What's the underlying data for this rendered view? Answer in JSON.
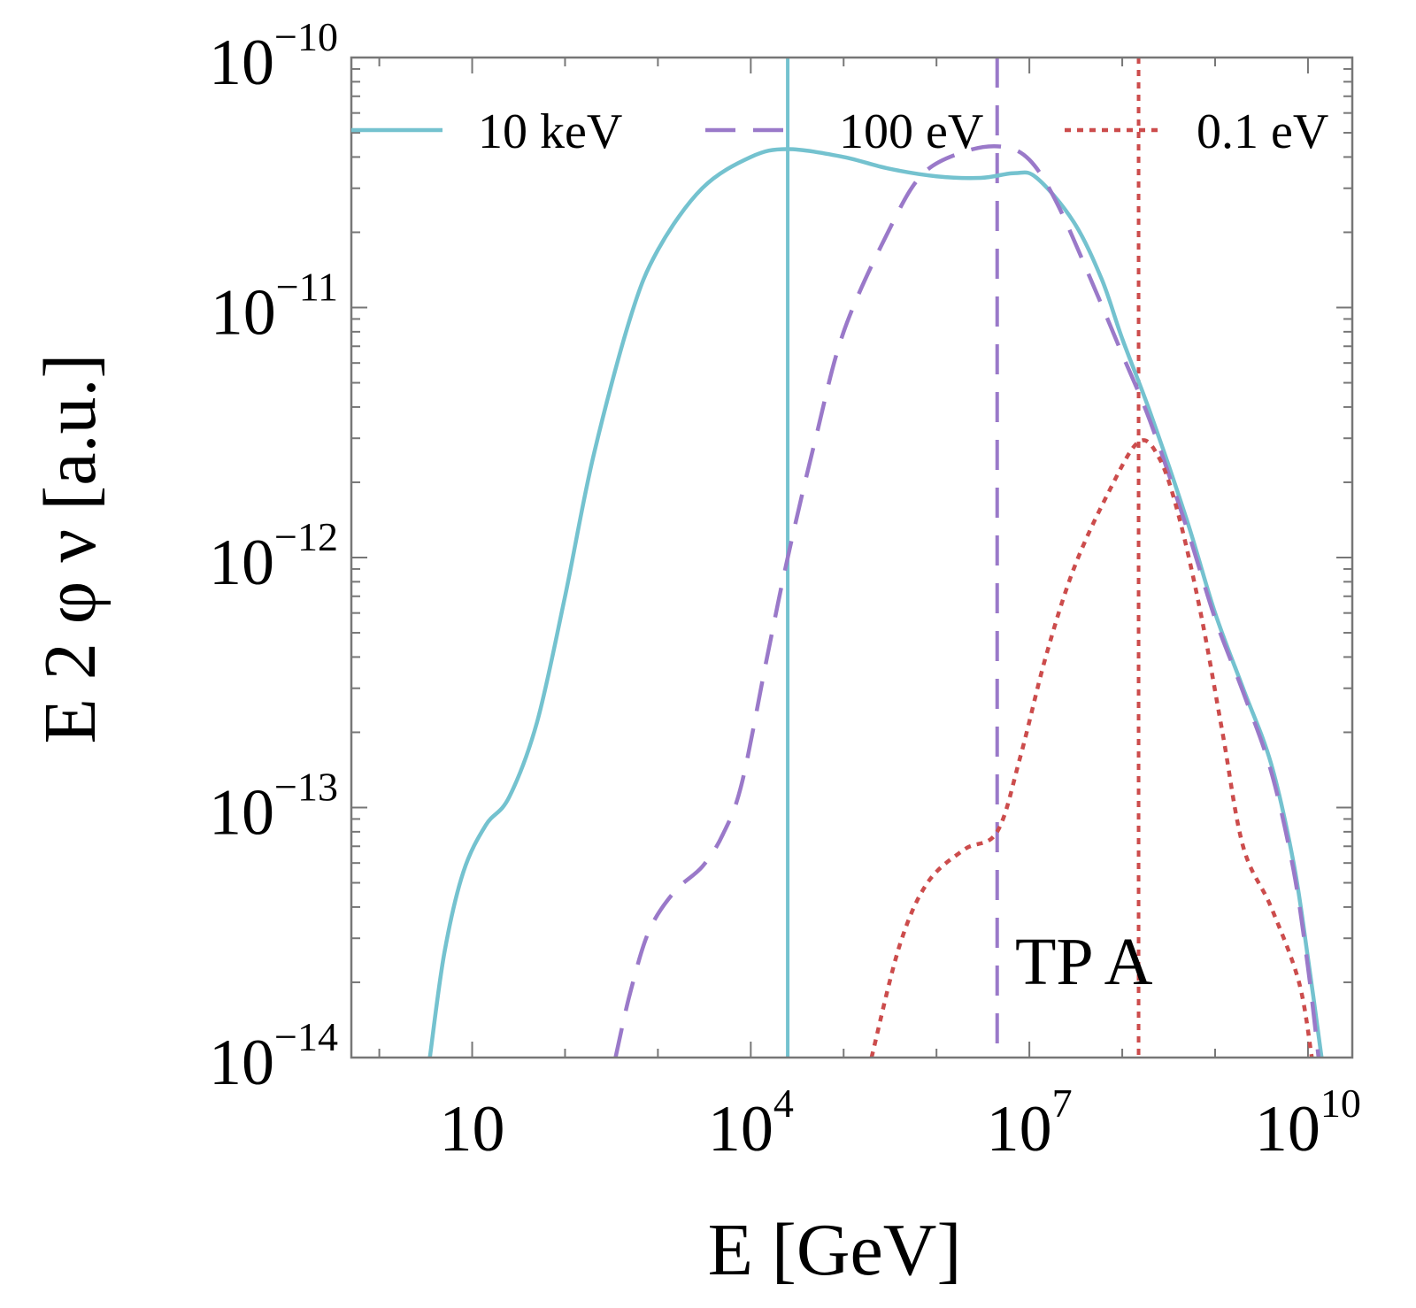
{
  "chart_data": {
    "type": "line",
    "xlabel": "E [GeV]",
    "ylabel": "E 2 φ ν [a.u.]",
    "x_scale": "log",
    "y_scale": "log",
    "xlim": [
      0.5,
      30000000000
    ],
    "ylim": [
      1e-14,
      1e-10
    ],
    "x_ticks": [
      {
        "value": 10,
        "base": "10",
        "exp": ""
      },
      {
        "value": 10000,
        "base": "10",
        "exp": "4"
      },
      {
        "value": 10000000,
        "base": "10",
        "exp": "7"
      },
      {
        "value": 10000000000,
        "base": "10",
        "exp": "10"
      }
    ],
    "y_ticks": [
      {
        "value": 1e-10,
        "base": "10",
        "exp": "−10"
      },
      {
        "value": 1e-11,
        "base": "10",
        "exp": "−11"
      },
      {
        "value": 1e-12,
        "base": "10",
        "exp": "−12"
      },
      {
        "value": 1e-13,
        "base": "10",
        "exp": "−13"
      },
      {
        "value": 1e-14,
        "base": "10",
        "exp": "−14"
      }
    ],
    "annotation": "TP A",
    "legend_position": "top",
    "series": [
      {
        "name": "10 keV",
        "color": "#74c2cf",
        "dash": "solid",
        "vline_x": 25000,
        "points": [
          [
            3.5,
            1e-14
          ],
          [
            5,
            2.6e-14
          ],
          [
            8,
            5.5e-14
          ],
          [
            14,
            8.5e-14
          ],
          [
            25,
            1.1e-13
          ],
          [
            50,
            2.2e-13
          ],
          [
            100,
            7e-13
          ],
          [
            200,
            2.5e-12
          ],
          [
            500,
            9e-12
          ],
          [
            1000,
            1.7e-11
          ],
          [
            3000,
            3e-11
          ],
          [
            10000,
            4e-11
          ],
          [
            25000,
            4.3e-11
          ],
          [
            100000,
            4e-11
          ],
          [
            300000,
            3.6e-11
          ],
          [
            1000000,
            3.35e-11
          ],
          [
            3000000,
            3.3e-11
          ],
          [
            7000000,
            3.45e-11
          ],
          [
            12000000,
            3.3e-11
          ],
          [
            30000000,
            2.2e-11
          ],
          [
            60000000,
            1.3e-11
          ],
          [
            100000000,
            7.5e-12
          ],
          [
            200000000,
            3.8e-12
          ],
          [
            500000000,
            1.4e-12
          ],
          [
            1000000000,
            6e-13
          ],
          [
            2000000000,
            3e-13
          ],
          [
            4000000000,
            1.5e-13
          ],
          [
            7000000000,
            6e-14
          ],
          [
            10000000000,
            2.5e-14
          ],
          [
            14000000000,
            1e-14
          ]
        ]
      },
      {
        "name": "100 eV",
        "color": "#9a79c9",
        "dash": "dashed",
        "vline_x": 4500000,
        "points": [
          [
            350,
            1e-14
          ],
          [
            500,
            1.8e-14
          ],
          [
            800,
            3.2e-14
          ],
          [
            1500,
            4.6e-14
          ],
          [
            3000,
            5.8e-14
          ],
          [
            5000,
            7.8e-14
          ],
          [
            8000,
            1.25e-13
          ],
          [
            15000,
            4e-13
          ],
          [
            25000,
            1e-12
          ],
          [
            50000,
            3e-12
          ],
          [
            100000,
            8e-12
          ],
          [
            300000,
            2e-11
          ],
          [
            700000,
            3.4e-11
          ],
          [
            2000000,
            4.2e-11
          ],
          [
            5000000,
            4.4e-11
          ],
          [
            10000000,
            3.9e-11
          ],
          [
            20000000,
            2.6e-11
          ],
          [
            50000000,
            1.2e-11
          ],
          [
            100000000,
            6.5e-12
          ],
          [
            200000000,
            3.5e-12
          ],
          [
            500000000,
            1.3e-12
          ],
          [
            1000000000,
            5.7e-13
          ],
          [
            2000000000,
            2.9e-13
          ],
          [
            4000000000,
            1.4e-13
          ],
          [
            7000000000,
            5.6e-14
          ],
          [
            10000000000,
            2.3e-14
          ],
          [
            13000000000,
            1e-14
          ]
        ]
      },
      {
        "name": "0.1 eV",
        "color": "#cc4c4c",
        "dash": "dotted",
        "vline_x": 150000000,
        "points": [
          [
            200000,
            1e-14
          ],
          [
            400000,
            2.8e-14
          ],
          [
            800000,
            5e-14
          ],
          [
            2000000,
            6.8e-14
          ],
          [
            4500000,
            8e-14
          ],
          [
            8000000,
            1.6e-13
          ],
          [
            15000000,
            4e-13
          ],
          [
            30000000,
            9e-13
          ],
          [
            70000000,
            1.8e-12
          ],
          [
            150000000,
            2.9e-12
          ],
          [
            250000000,
            2.5e-12
          ],
          [
            400000000,
            1.5e-12
          ],
          [
            700000000,
            6e-13
          ],
          [
            1200000000,
            2e-13
          ],
          [
            2000000000,
            7e-14
          ],
          [
            4000000000,
            4e-14
          ],
          [
            8000000000,
            2e-14
          ],
          [
            11000000000,
            1e-14
          ]
        ]
      }
    ]
  }
}
